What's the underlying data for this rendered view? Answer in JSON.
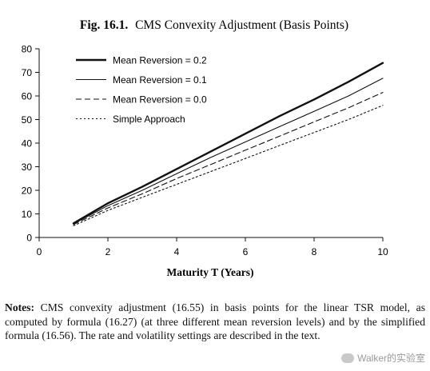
{
  "figure": {
    "label": "Fig. 16.1.",
    "title": "CMS Convexity Adjustment (Basis Points)"
  },
  "chart_data": {
    "type": "line",
    "title": "CMS Convexity Adjustment (Basis Points)",
    "xlabel": "Maturity T (Years)",
    "ylabel": "",
    "xlim": [
      0,
      10
    ],
    "ylim": [
      0,
      80
    ],
    "x_ticks": [
      "0",
      "2",
      "4",
      "6",
      "8",
      "10"
    ],
    "y_ticks": [
      "0",
      "10",
      "20",
      "30",
      "40",
      "50",
      "60",
      "70",
      "80"
    ],
    "grid": false,
    "legend_position": "top-left",
    "x": [
      1,
      2,
      3,
      4,
      5,
      6,
      7,
      8,
      9,
      10
    ],
    "series": [
      {
        "name": "Mean Reversion = 0.2",
        "style": "solid-thick",
        "values": [
          6,
          14.5,
          21.5,
          29,
          36.5,
          44,
          51.5,
          58.5,
          66,
          74
        ]
      },
      {
        "name": "Mean Reversion = 0.1",
        "style": "solid-thin",
        "values": [
          5.8,
          13.5,
          20,
          27,
          34,
          40.5,
          47,
          53.5,
          60,
          67.5
        ]
      },
      {
        "name": "Mean Reversion = 0.0",
        "style": "dashed",
        "values": [
          5.5,
          12.5,
          18.5,
          25,
          31,
          37,
          43,
          49,
          55,
          61.5
        ]
      },
      {
        "name": "Simple Approach",
        "style": "dotted",
        "values": [
          5,
          11.5,
          17,
          22.5,
          28,
          33.5,
          39,
          44.5,
          50,
          56
        ]
      }
    ]
  },
  "notes": {
    "label": "Notes:",
    "text": "CMS convexity adjustment (16.55) in basis points for the linear TSR model, as computed by formula (16.27) (at three different mean reversion levels) and by the simplified formula (16.56). The rate and volatility settings are described in the text."
  },
  "watermark": {
    "text": "Walker的实验室",
    "icon": "wechat-icon"
  }
}
